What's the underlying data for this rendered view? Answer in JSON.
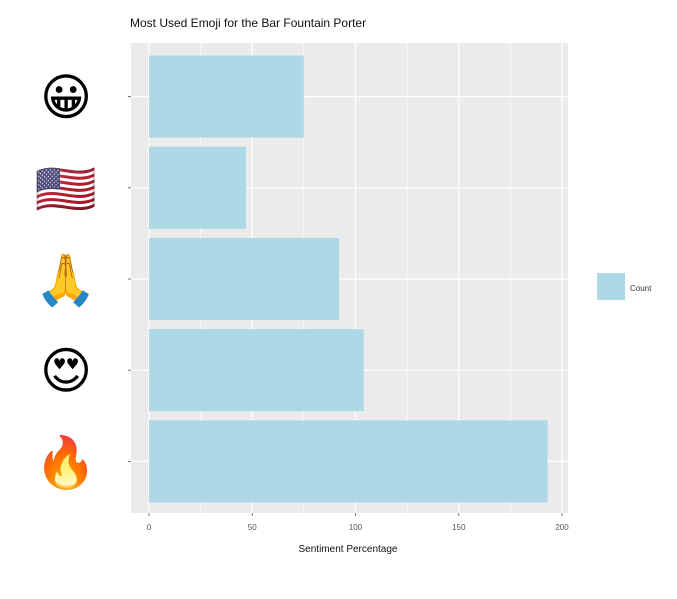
{
  "chart_data": {
    "type": "bar",
    "orientation": "horizontal",
    "title": "Most Used Emoji for the Bar Fountain Porter",
    "xlabel": "Sentiment Percentage",
    "ylabel": "",
    "xlim": [
      0,
      200
    ],
    "x_ticks": [
      "0",
      "50",
      "100",
      "150",
      "200"
    ],
    "grid": true,
    "legend": {
      "placement": "right",
      "entries": [
        {
          "label": "Count",
          "color": "#ADD8E6"
        }
      ]
    },
    "categories": [
      "grinning-face-emoji",
      "us-flag-emoji",
      "folded-hands-emoji",
      "heart-eyes-emoji",
      "fire-emoji"
    ],
    "category_glyphs": [
      "😀",
      "🇺🇸",
      "🙏",
      "😍",
      "🔥"
    ],
    "values": [
      75,
      47,
      92,
      104,
      193
    ],
    "bar_color": "#ADD8E6",
    "panel_color": "#EBEBEB"
  }
}
